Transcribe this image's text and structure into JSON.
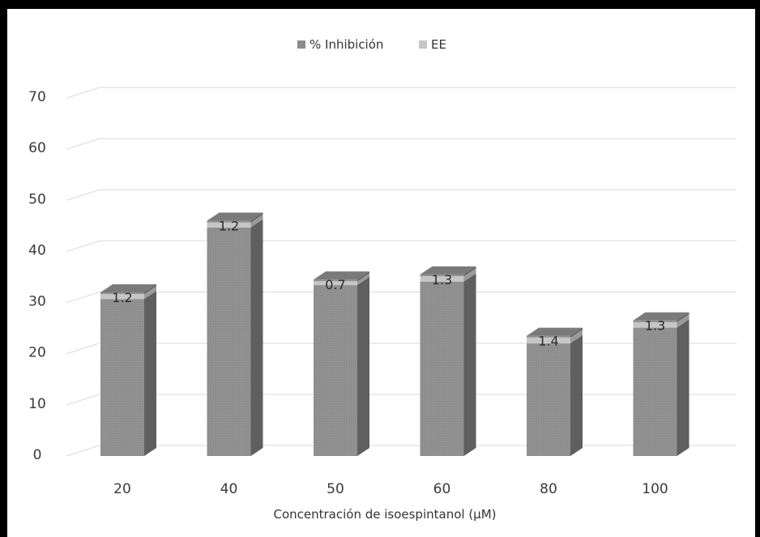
{
  "chart_data": {
    "type": "bar",
    "title": "",
    "xlabel": "Concentración de isoespintanol (μM)",
    "ylabel": "",
    "categories": [
      "20",
      "40",
      "50",
      "60",
      "80",
      "100"
    ],
    "series": [
      {
        "name": "% Inhibición",
        "values": [
          32,
          46,
          34.5,
          35.5,
          23.5,
          26.5
        ],
        "color": "#8c8c8c"
      },
      {
        "name": "EE",
        "values": [
          1.2,
          1.2,
          0.7,
          1.3,
          1.4,
          1.3
        ],
        "color": "#c6c6c6"
      }
    ],
    "data_labels": [
      "1.2",
      "1.2",
      "0.7",
      "1.3",
      "1.4",
      "1.3"
    ],
    "y_ticks": [
      "0",
      "10",
      "20",
      "30",
      "40",
      "50",
      "60",
      "70"
    ],
    "ylim": [
      0,
      70
    ],
    "grid": true,
    "legend_position": "top-center",
    "style": "3d-column"
  }
}
